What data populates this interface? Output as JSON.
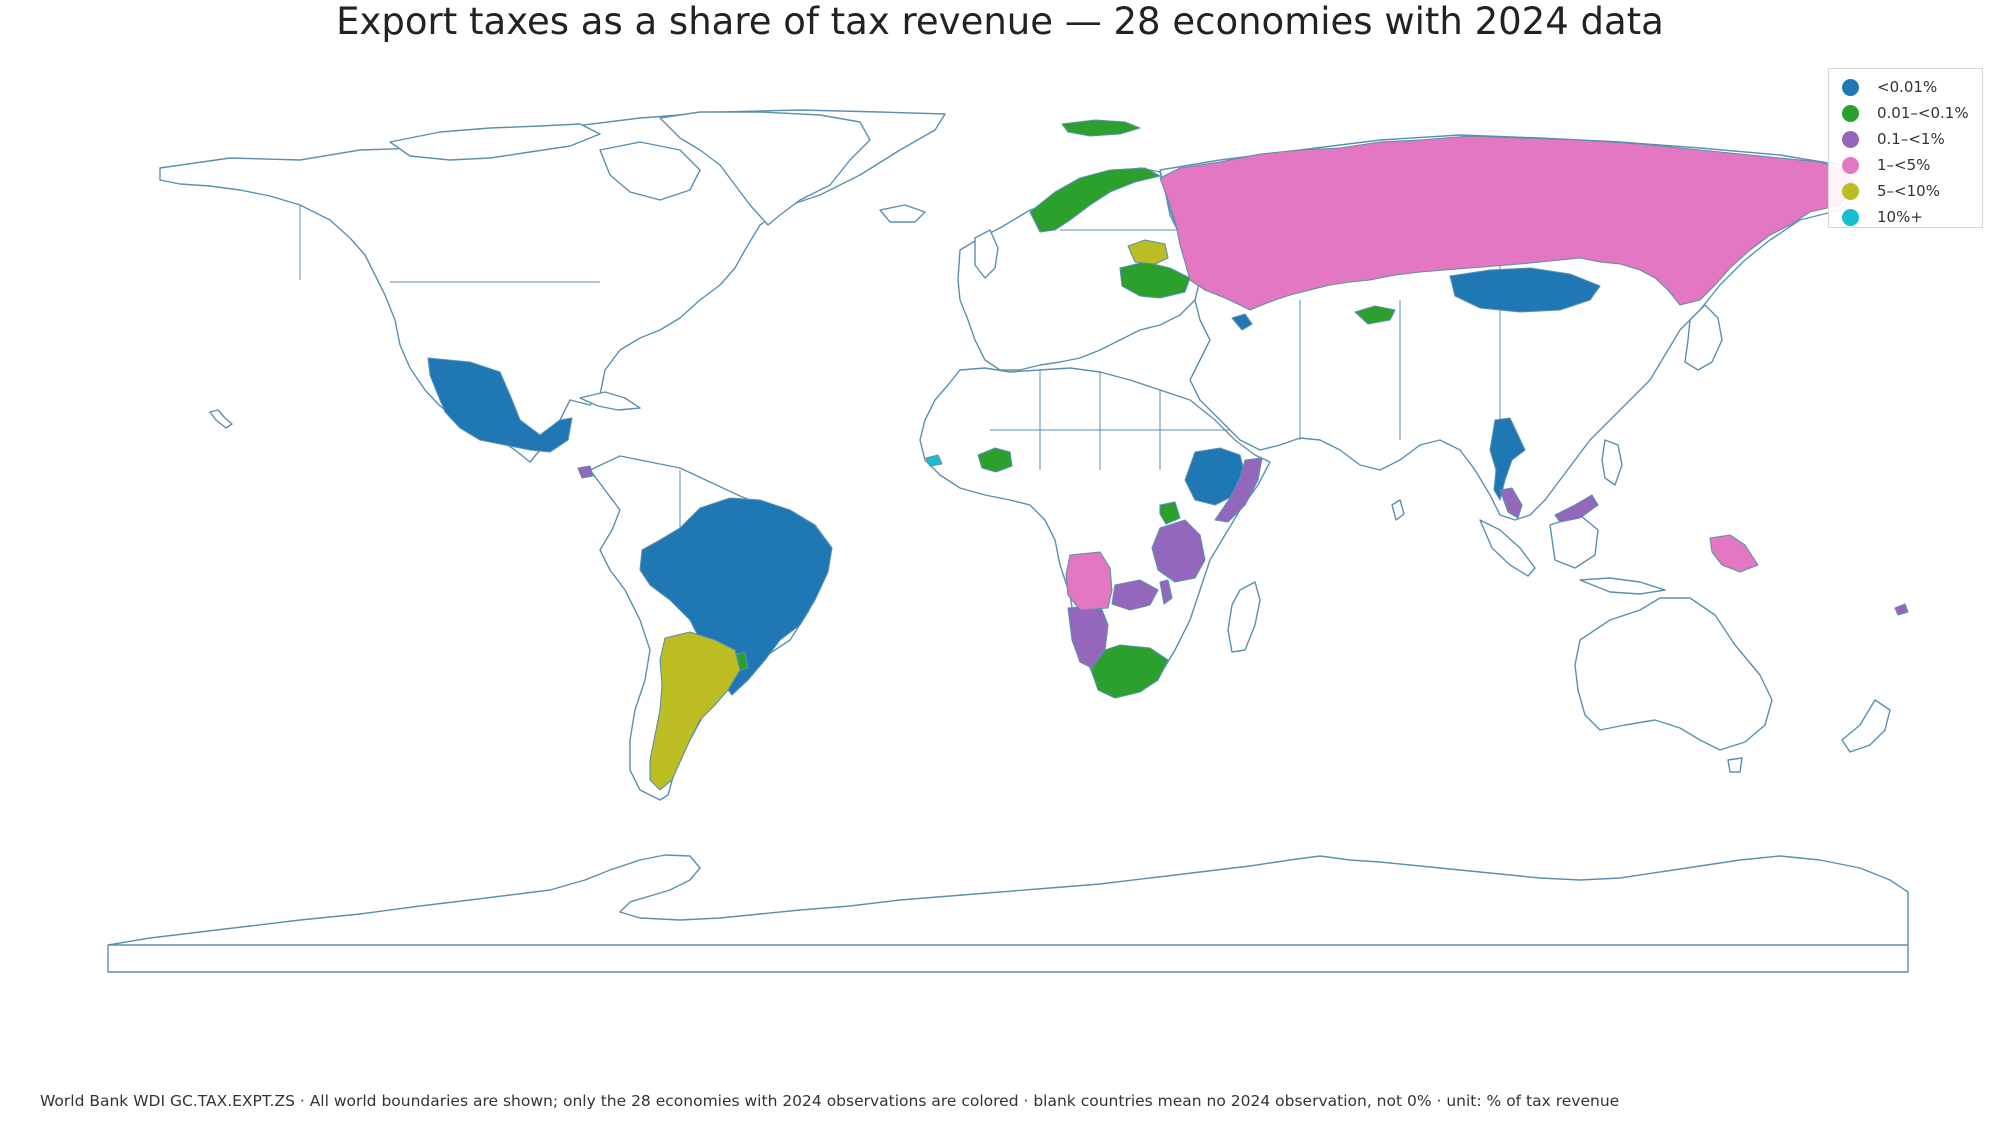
{
  "title": "Export taxes as a share of tax revenue — 28 economies with 2024 data",
  "footnote": "World Bank WDI GC.TAX.EXPT.ZS · All world boundaries are shown; only the 28 economies with 2024 observations are colored · blank countries mean no 2024 observation, not 0% · unit: % of tax revenue",
  "legend": [
    {
      "label": "<0.01%",
      "color": "#1f77b4"
    },
    {
      "label": "0.01–<0.1%",
      "color": "#2ca02c"
    },
    {
      "label": "0.1–<1%",
      "color": "#9467bd"
    },
    {
      "label": "1–<5%",
      "color": "#e377c2"
    },
    {
      "label": "5–<10%",
      "color": "#bcbd22"
    },
    {
      "label": "10%+",
      "color": "#17becf"
    }
  ],
  "colors": {
    "boundary": "#5b8fb0",
    "land": "#ffffff"
  },
  "regions": [
    {
      "name": "Mexico",
      "class": "<0.01%"
    },
    {
      "name": "Nicaragua",
      "class": "0.1–<1%"
    },
    {
      "name": "Brazil",
      "class": "<0.01%"
    },
    {
      "name": "Argentina",
      "class": "5–<10%"
    },
    {
      "name": "Uruguay",
      "class": "0.01–<0.1%"
    },
    {
      "name": "Russia",
      "class": "1–<5%"
    },
    {
      "name": "Mongolia",
      "class": "<0.01%"
    },
    {
      "name": "Norway",
      "class": "0.01–<0.1%"
    },
    {
      "name": "Svalbard",
      "class": "0.01–<0.1%"
    },
    {
      "name": "Belarus",
      "class": "5–<10%"
    },
    {
      "name": "Ukraine",
      "class": "0.01–<0.1%"
    },
    {
      "name": "Georgia",
      "class": "<0.01%"
    },
    {
      "name": "Kyrgyzstan",
      "class": "0.01–<0.1%"
    },
    {
      "name": "Burkina Faso",
      "class": "0.01–<0.1%"
    },
    {
      "name": "Senegal",
      "class": "10%+"
    },
    {
      "name": "Ethiopia",
      "class": "<0.01%"
    },
    {
      "name": "Somalia",
      "class": "0.1–<1%"
    },
    {
      "name": "Rwanda",
      "class": "0.01–<0.1%"
    },
    {
      "name": "Tanzania",
      "class": "0.1–<1%"
    },
    {
      "name": "Angola",
      "class": "1–<5%"
    },
    {
      "name": "Zambia",
      "class": "0.1–<1%"
    },
    {
      "name": "Malawi",
      "class": "0.1–<1%"
    },
    {
      "name": "Namibia",
      "class": "0.1–<1%"
    },
    {
      "name": "South Africa",
      "class": "0.01–<0.1%"
    },
    {
      "name": "Thailand",
      "class": "<0.01%"
    },
    {
      "name": "Malaysia",
      "class": "0.1–<1%"
    },
    {
      "name": "Papua New Guinea",
      "class": "1–<5%"
    },
    {
      "name": "Fiji",
      "class": "0.1–<1%"
    }
  ]
}
